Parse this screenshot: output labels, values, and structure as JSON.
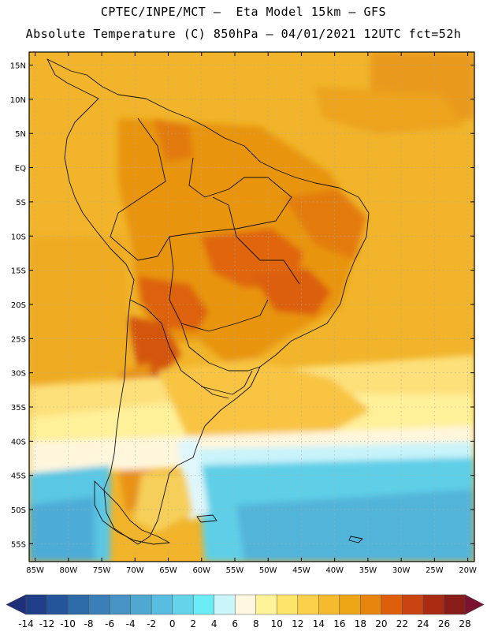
{
  "title_line1": "CPTEC/INPE/MCT –  Eta Model 15km – GFS",
  "title_line2": "Absolute Temperature (C) 850hPa – 04/01/2021 12UTC fct=52h",
  "lat_labels": [
    "15N",
    "10N",
    "5N",
    "EQ",
    "5S",
    "10S",
    "15S",
    "20S",
    "25S",
    "30S",
    "35S",
    "40S",
    "45S",
    "50S",
    "55S"
  ],
  "lon_labels": [
    "85W",
    "80W",
    "75W",
    "70W",
    "65W",
    "60W",
    "55W",
    "50W",
    "45W",
    "40W",
    "35W",
    "30W",
    "25W",
    "20W"
  ],
  "colorbar": {
    "labels": [
      "-14",
      "-12",
      "-10",
      "-8",
      "-6",
      "-4",
      "-2",
      "0",
      "2",
      "4",
      "6",
      "8",
      "10",
      "12",
      "14",
      "16",
      "18",
      "20",
      "22",
      "24",
      "26",
      "28"
    ],
    "colors": [
      "#1f3f8a",
      "#24559b",
      "#2d6aa8",
      "#3a80b8",
      "#4693c4",
      "#4fa8d2",
      "#58bde0",
      "#63d4ea",
      "#6cecf5",
      "#c9f5fb",
      "#fff7df",
      "#fff39a",
      "#ffe46a",
      "#fbd04a",
      "#f3bb2d",
      "#eda716",
      "#e8850e",
      "#de5e0c",
      "#c94410",
      "#aa2b12",
      "#871c18"
    ],
    "under_color": "#1e2f7a",
    "over_color": "#7a1230"
  }
}
